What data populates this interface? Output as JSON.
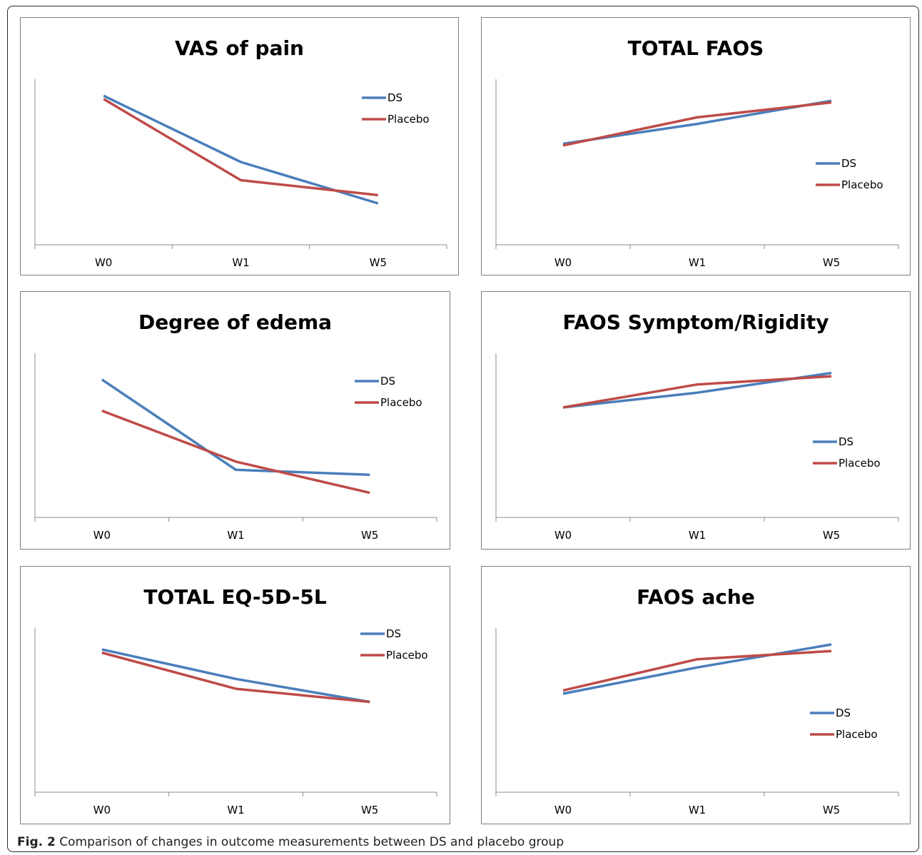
{
  "caption": {
    "label": "Fig. 2",
    "text": "Comparison of changes in outcome measurements between DS and placebo group"
  },
  "colors": {
    "DS": "#4a7ebb",
    "Placebo": "#be4b48"
  },
  "chart_data": [
    {
      "type": "line",
      "title": "VAS of pain",
      "categories": [
        "W0",
        "W1",
        "W5"
      ],
      "ylim": [
        0,
        1
      ],
      "legend_position": "top-right",
      "series": [
        {
          "name": "DS",
          "values": [
            0.9,
            0.5,
            0.25
          ]
        },
        {
          "name": "Placebo",
          "values": [
            0.88,
            0.39,
            0.3
          ]
        }
      ]
    },
    {
      "type": "line",
      "title": "TOTAL FAOS",
      "categories": [
        "W0",
        "W1",
        "W5"
      ],
      "ylim": [
        0,
        1
      ],
      "legend_position": "right",
      "series": [
        {
          "name": "DS",
          "values": [
            0.61,
            0.73,
            0.87
          ]
        },
        {
          "name": "Placebo",
          "values": [
            0.6,
            0.77,
            0.86
          ]
        }
      ]
    },
    {
      "type": "line",
      "title": "Degree of edema",
      "categories": [
        "W0",
        "W1",
        "W5"
      ],
      "ylim": [
        0,
        1
      ],
      "legend_position": "top-right",
      "series": [
        {
          "name": "DS",
          "values": [
            0.84,
            0.29,
            0.26
          ]
        },
        {
          "name": "Placebo",
          "values": [
            0.65,
            0.34,
            0.15
          ]
        }
      ]
    },
    {
      "type": "line",
      "title": "FAOS Symptom/Rigidity",
      "categories": [
        "W0",
        "W1",
        "W5"
      ],
      "ylim": [
        0,
        1
      ],
      "legend_position": "right",
      "series": [
        {
          "name": "DS",
          "values": [
            0.67,
            0.76,
            0.88
          ]
        },
        {
          "name": "Placebo",
          "values": [
            0.67,
            0.81,
            0.86
          ]
        }
      ]
    },
    {
      "type": "line",
      "title": "TOTAL EQ-5D-5L",
      "categories": [
        "W0",
        "W1",
        "W5"
      ],
      "ylim": [
        0,
        1
      ],
      "legend_position": "top-right",
      "series": [
        {
          "name": "DS",
          "values": [
            0.87,
            0.69,
            0.55
          ]
        },
        {
          "name": "Placebo",
          "values": [
            0.85,
            0.63,
            0.55
          ]
        }
      ]
    },
    {
      "type": "line",
      "title": "FAOS ache",
      "categories": [
        "W0",
        "W1",
        "W5"
      ],
      "ylim": [
        0,
        1
      ],
      "legend_position": "right",
      "series": [
        {
          "name": "DS",
          "values": [
            0.6,
            0.76,
            0.9
          ]
        },
        {
          "name": "Placebo",
          "values": [
            0.62,
            0.81,
            0.86
          ]
        }
      ]
    }
  ]
}
